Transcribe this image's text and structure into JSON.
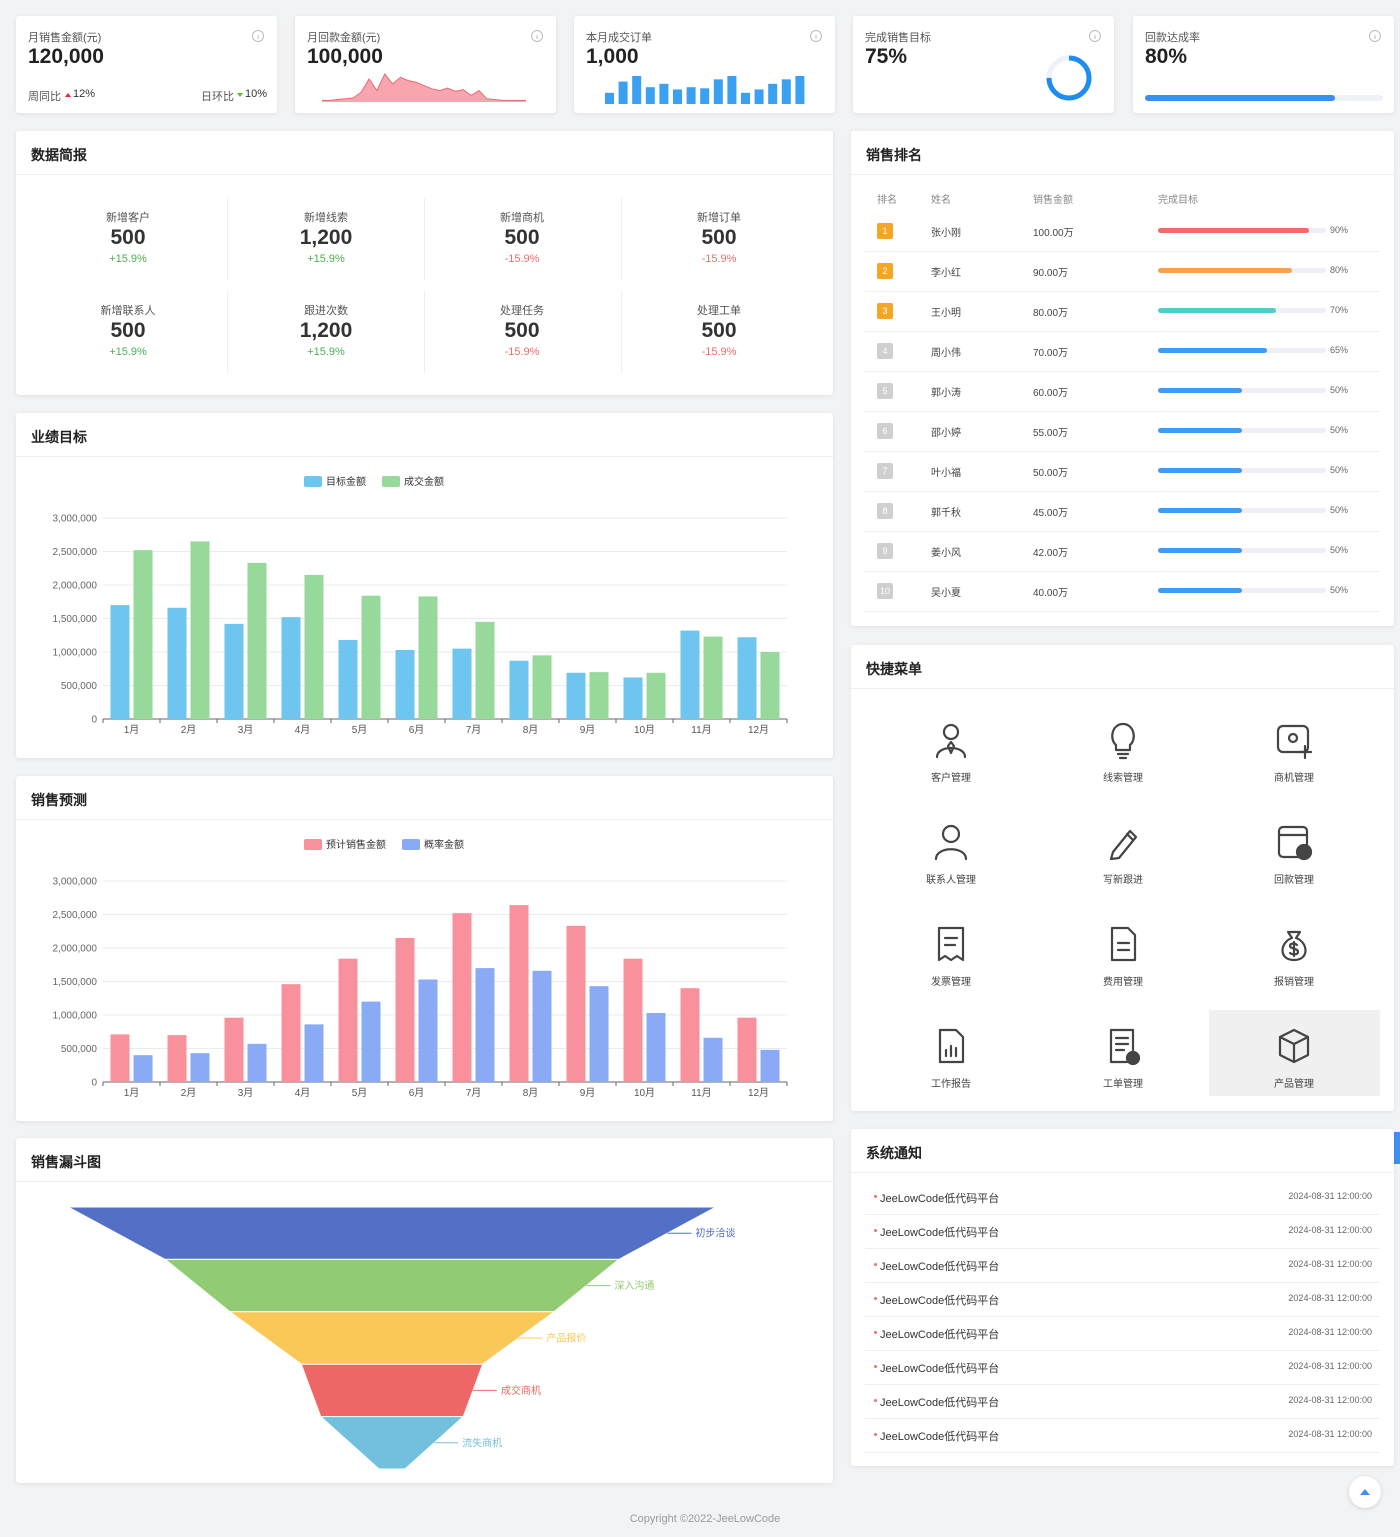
{
  "kpis": [
    {
      "title": "月销售金额(元)",
      "value": "120,000",
      "week_label": "周同比",
      "week_change": "12%",
      "week_trend": "up",
      "day_label": "日环比",
      "day_change": "10%",
      "day_trend": "down"
    },
    {
      "title": "月回款金额(元)",
      "value": "100,000",
      "trend": [
        2,
        2,
        3,
        4,
        5,
        12,
        28,
        14,
        34,
        22,
        30,
        26,
        24,
        20,
        16,
        14,
        17,
        13,
        15,
        8,
        14,
        4,
        3,
        2,
        2,
        2,
        2
      ]
    },
    {
      "title": "本月成交订单",
      "value": "1,000",
      "bars": [
        10,
        20,
        25,
        15,
        18,
        13,
        15,
        14,
        22,
        25,
        10,
        13,
        18,
        22,
        25
      ]
    },
    {
      "title": "完成销售目标",
      "value": 75,
      "value_label": "75%"
    },
    {
      "title": "回款达成率",
      "value": 80,
      "value_label": "80%"
    }
  ],
  "brief": {
    "title": "数据简报",
    "items": [
      {
        "label": "新增客户",
        "value": "500",
        "change": "+15.9%"
      },
      {
        "label": "新增线索",
        "value": "1,200",
        "change": "+15.9%"
      },
      {
        "label": "新增商机",
        "value": "500",
        "change": "-15.9%"
      },
      {
        "label": "新增订单",
        "value": "500",
        "change": "-15.9%"
      },
      {
        "label": "新增联系人",
        "value": "500",
        "change": "+15.9%"
      },
      {
        "label": "跟进次数",
        "value": "1,200",
        "change": "+15.9%"
      },
      {
        "label": "处理任务",
        "value": "500",
        "change": "-15.9%"
      },
      {
        "label": "处理工单",
        "value": "500",
        "change": "-15.9%"
      }
    ]
  },
  "target": {
    "type": "bar",
    "title": "业绩目标",
    "categories": [
      "1月",
      "2月",
      "3月",
      "4月",
      "5月",
      "6月",
      "7月",
      "8月",
      "9月",
      "10月",
      "11月",
      "12月"
    ],
    "series": [
      {
        "name": "目标金额",
        "color": "#6ec6f0",
        "values": [
          1700000,
          1660000,
          1420000,
          1520000,
          1180000,
          1030000,
          1050000,
          870000,
          690000,
          620000,
          1320000,
          1220000
        ]
      },
      {
        "name": "成交金额",
        "color": "#96d99b",
        "values": [
          2520000,
          2650000,
          2330000,
          2150000,
          1840000,
          1830000,
          1450000,
          950000,
          700000,
          690000,
          1230000,
          1000000
        ]
      }
    ],
    "ylim": [
      0,
      3000000
    ],
    "yticks": [
      0,
      {
        "value": 500000,
        "label": "500,000"
      },
      {
        "value": 1000000,
        "label": "1,000,000"
      },
      {
        "value": 1500000,
        "label": "1,500,000"
      },
      {
        "value": 2000000,
        "label": "2,000,000"
      },
      {
        "value": 2500000,
        "label": "2,500,000"
      },
      {
        "value": 3000000,
        "label": "3,000,000"
      }
    ],
    "grid": true
  },
  "forecast": {
    "type": "bar",
    "title": "销售预测",
    "categories": [
      "1月",
      "2月",
      "3月",
      "4月",
      "5月",
      "6月",
      "7月",
      "8月",
      "9月",
      "10月",
      "11月",
      "12月"
    ],
    "series": [
      {
        "name": "预计销售金额",
        "color": "#f8919b",
        "values": [
          710000,
          700000,
          960000,
          1460000,
          1840000,
          2150000,
          2520000,
          2640000,
          2330000,
          1840000,
          1400000,
          960000
        ]
      },
      {
        "name": "概率金额",
        "color": "#8aaaf5",
        "values": [
          400000,
          430000,
          570000,
          860000,
          1200000,
          1530000,
          1700000,
          1660000,
          1430000,
          1030000,
          660000,
          480000
        ]
      }
    ],
    "ylim": [
      0,
      3000000
    ],
    "yticks": [
      0,
      {
        "value": 500000,
        "label": "500,000"
      },
      {
        "value": 1000000,
        "label": "1,000,000"
      },
      {
        "value": 1500000,
        "label": "1,500,000"
      },
      {
        "value": 2000000,
        "label": "2,000,000"
      },
      {
        "value": 2500000,
        "label": "2,500,000"
      },
      {
        "value": 3000000,
        "label": "3,000,000"
      }
    ],
    "grid": true
  },
  "funnel": {
    "type": "funnel",
    "title": "销售漏斗图",
    "stages": [
      {
        "name": "初步洽谈",
        "color": "#5470c6",
        "value": 100
      },
      {
        "name": "深入沟通",
        "color": "#91cc75",
        "value": 70
      },
      {
        "name": "产品报价",
        "color": "#fac858",
        "value": 50
      },
      {
        "name": "成交商机",
        "color": "#ee6666",
        "value": 28
      },
      {
        "name": "流失商机",
        "color": "#73c0de",
        "value": 22
      }
    ]
  },
  "ranking": {
    "title": "销售排名",
    "columns": [
      "排名",
      "姓名",
      "销售金额",
      "完成目标"
    ],
    "rows": [
      {
        "rank": 1,
        "name": "张小刚",
        "amount": "100.00万",
        "percent": 90,
        "percent_label": "90%",
        "color": "#f0696b"
      },
      {
        "rank": 2,
        "name": "李小红",
        "amount": "90.00万",
        "percent": 80,
        "percent_label": "80%",
        "color": "#faa24b"
      },
      {
        "rank": 3,
        "name": "王小明",
        "amount": "80.00万",
        "percent": 70,
        "percent_label": "70%",
        "color": "#4fcdc8"
      },
      {
        "rank": 4,
        "name": "周小伟",
        "amount": "70.00万",
        "percent": 65,
        "percent_label": "65%",
        "color": "#3f9cf5"
      },
      {
        "rank": 5,
        "name": "郭小涛",
        "amount": "60.00万",
        "percent": 50,
        "percent_label": "50%",
        "color": "#3f9cf5"
      },
      {
        "rank": 6,
        "name": "邵小婷",
        "amount": "55.00万",
        "percent": 50,
        "percent_label": "50%",
        "color": "#3f9cf5"
      },
      {
        "rank": 7,
        "name": "叶小福",
        "amount": "50.00万",
        "percent": 50,
        "percent_label": "50%",
        "color": "#3f9cf5"
      },
      {
        "rank": 8,
        "name": "郭千秋",
        "amount": "45.00万",
        "percent": 50,
        "percent_label": "50%",
        "color": "#3f9cf5"
      },
      {
        "rank": 9,
        "name": "姜小风",
        "amount": "42.00万",
        "percent": 50,
        "percent_label": "50%",
        "color": "#3f9cf5"
      },
      {
        "rank": 10,
        "name": "吴小夏",
        "amount": "40.00万",
        "percent": 50,
        "percent_label": "50%",
        "color": "#3f9cf5"
      }
    ]
  },
  "menu": {
    "title": "快捷菜单",
    "items": [
      "客户管理",
      "线索管理",
      "商机管理",
      "联系人管理",
      "写新跟进",
      "回款管理",
      "发票管理",
      "费用管理",
      "报销管理",
      "工作报告",
      "工单管理",
      "产品管理"
    ]
  },
  "notices": {
    "title": "系统通知",
    "items": [
      {
        "text": "JeeLowCode低代码平台",
        "time": "2024-08-31 12:00:00"
      },
      {
        "text": "JeeLowCode低代码平台",
        "time": "2024-08-31 12:00:00"
      },
      {
        "text": "JeeLowCode低代码平台",
        "time": "2024-08-31 12:00:00"
      },
      {
        "text": "JeeLowCode低代码平台",
        "time": "2024-08-31 12:00:00"
      },
      {
        "text": "JeeLowCode低代码平台",
        "time": "2024-08-31 12:00:00"
      },
      {
        "text": "JeeLowCode低代码平台",
        "time": "2024-08-31 12:00:00"
      },
      {
        "text": "JeeLowCode低代码平台",
        "time": "2024-08-31 12:00:00"
      },
      {
        "text": "JeeLowCode低代码平台",
        "time": "2024-08-31 12:00:00"
      }
    ]
  },
  "footer": "Copyright ©2022-JeeLowCode"
}
